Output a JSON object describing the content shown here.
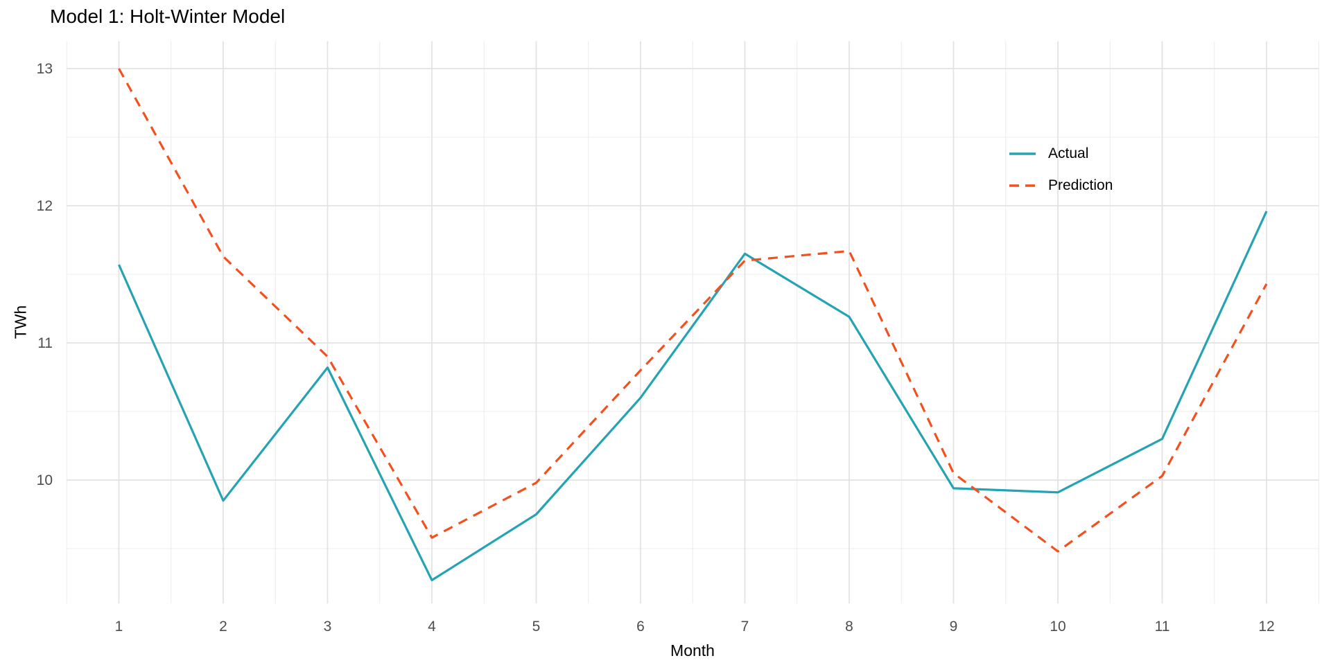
{
  "title": "Model 1: Holt-Winter Model",
  "axes": {
    "x_title": "Month",
    "y_title": "TWh"
  },
  "legend": {
    "items": [
      {
        "label": "Actual",
        "color": "#24A3B2",
        "style": "solid"
      },
      {
        "label": "Prediction",
        "color": "#F4501E",
        "style": "dashed"
      }
    ]
  },
  "colors": {
    "actual": "#24A3B2",
    "prediction": "#F4501E",
    "grid_major": "#E2E2E2",
    "grid_minor": "#EDEDED",
    "tick_text": "#4D4D4D",
    "background": "#FFFFFF"
  },
  "chart_data": {
    "type": "line",
    "title": "Model 1: Holt-Winter Model",
    "xlabel": "Month",
    "ylabel": "TWh",
    "x": [
      1,
      2,
      3,
      4,
      5,
      6,
      7,
      8,
      9,
      10,
      11,
      12
    ],
    "series": [
      {
        "name": "Actual",
        "color": "#24A3B2",
        "style": "solid",
        "values": [
          11.57,
          9.85,
          10.82,
          9.27,
          9.75,
          10.6,
          11.65,
          11.19,
          9.94,
          9.91,
          10.3,
          11.96
        ]
      },
      {
        "name": "Prediction",
        "color": "#F4501E",
        "style": "dashed",
        "values": [
          13.0,
          11.63,
          10.9,
          9.58,
          9.98,
          10.8,
          11.6,
          11.67,
          10.05,
          9.48,
          10.03,
          11.43
        ]
      }
    ],
    "x_ticks": [
      "1",
      "2",
      "3",
      "4",
      "5",
      "6",
      "7",
      "8",
      "9",
      "10",
      "11",
      "12"
    ],
    "y_ticks": [
      "10",
      "11",
      "12",
      "13"
    ],
    "y_minor_gridlines": [
      9.5,
      10.5,
      11.5,
      12.5
    ],
    "xlim": [
      0.5,
      12.5
    ],
    "ylim": [
      9.1,
      13.2
    ],
    "grid": true,
    "legend_position": "inside-right"
  }
}
